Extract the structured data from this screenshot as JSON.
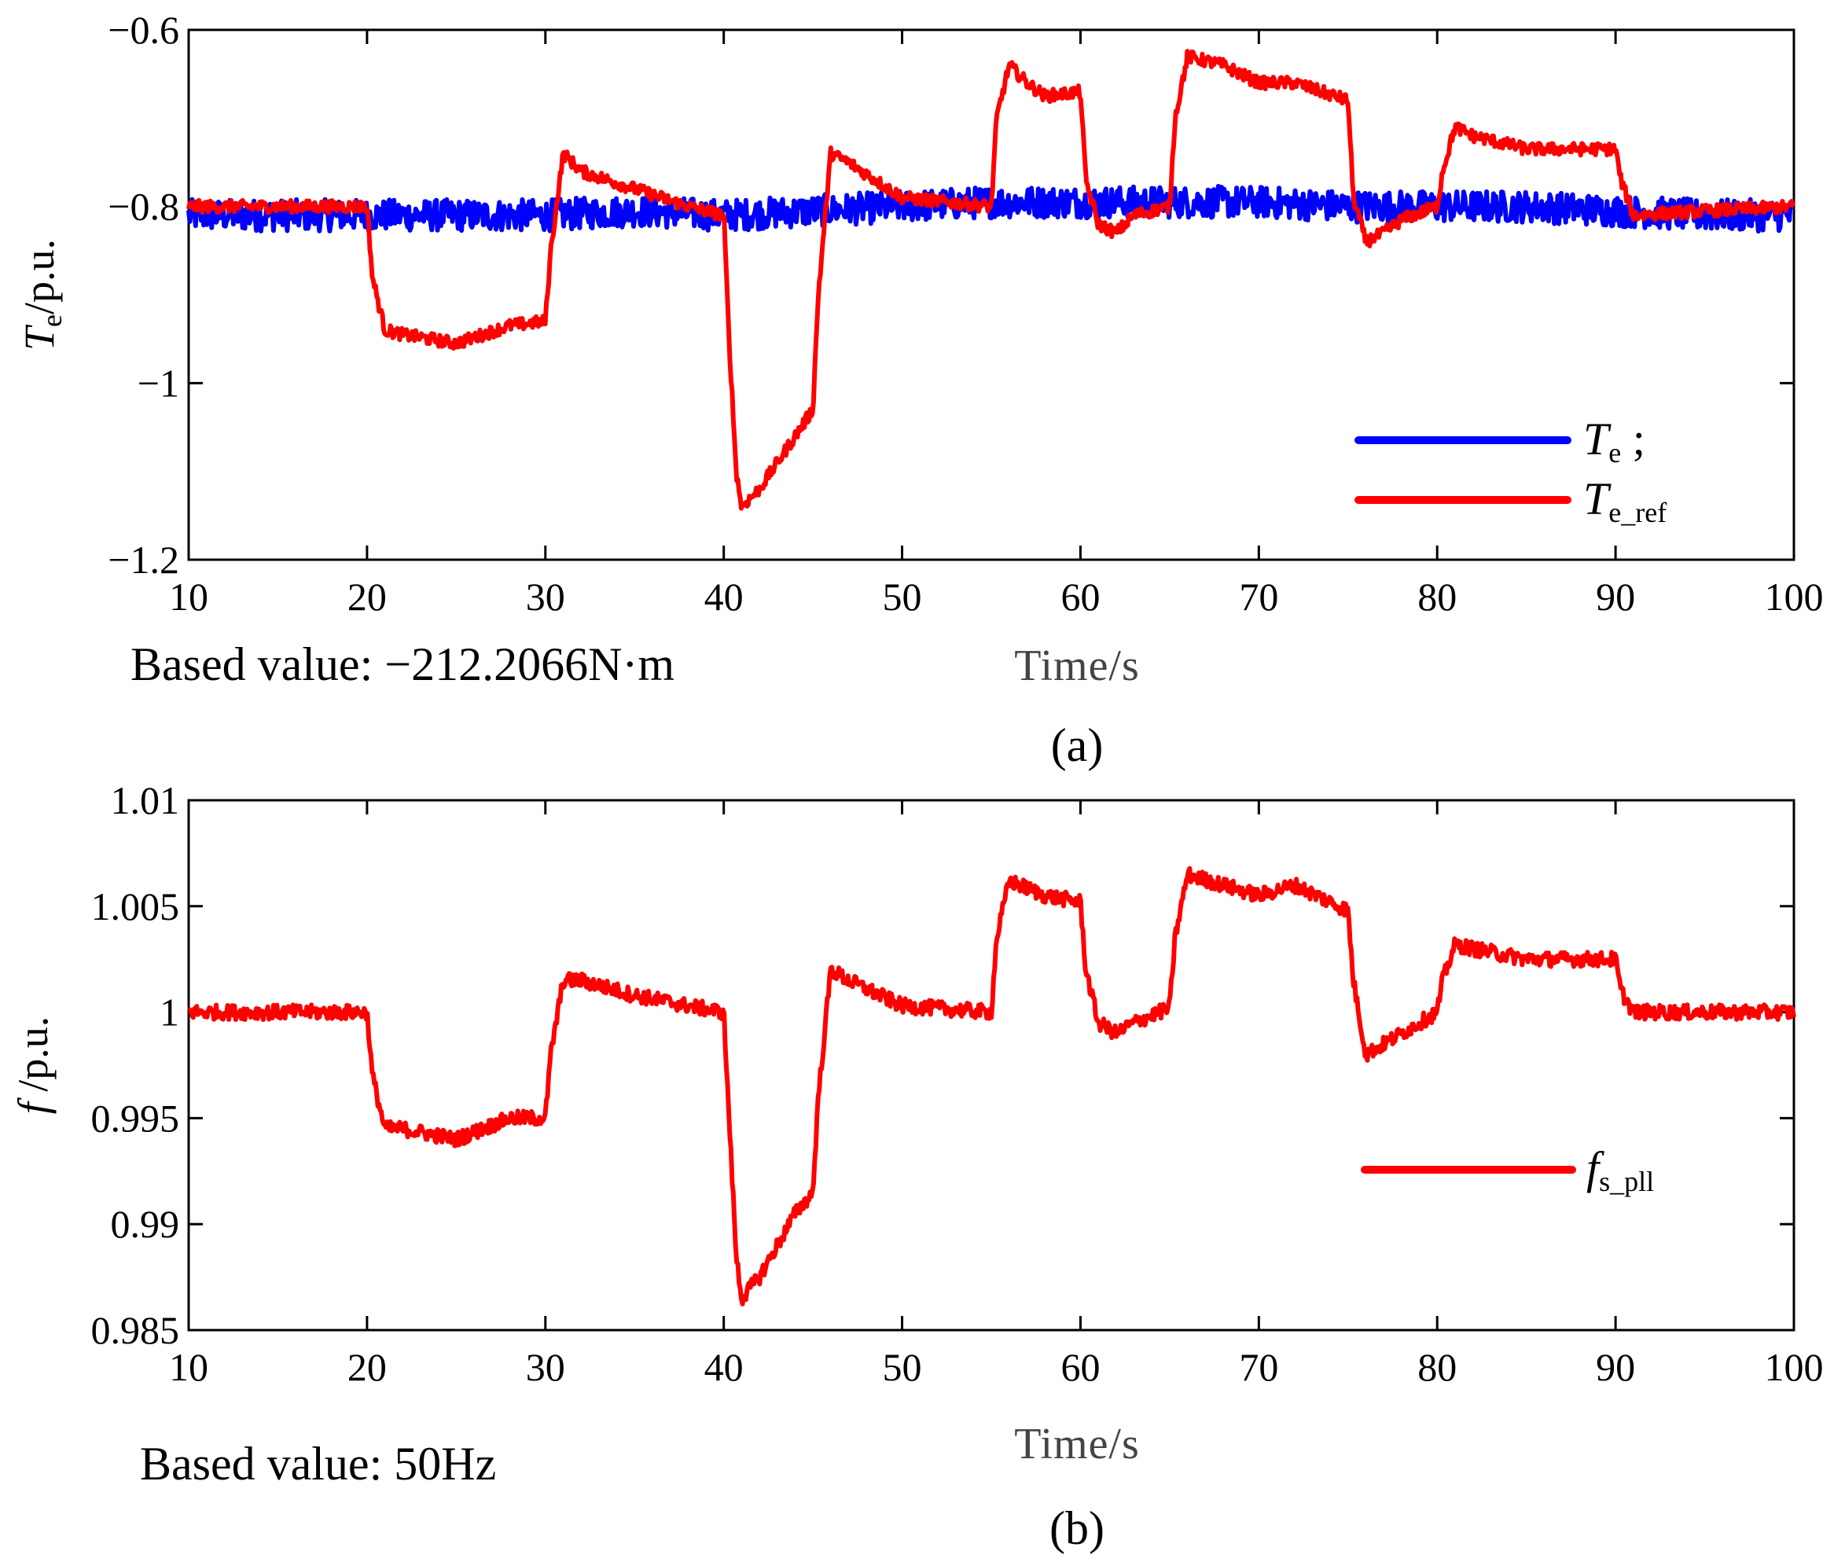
{
  "chart_data": [
    {
      "type": "line",
      "panel": "(a)",
      "title": "",
      "xlabel": "Time/s",
      "ylabel_main": "T",
      "ylabel_sub": "e",
      "ylabel_unit": "/p.u.",
      "xlim": [
        10,
        100
      ],
      "ylim": [
        -1.2,
        -0.6
      ],
      "xticks": [
        10,
        20,
        30,
        40,
        50,
        60,
        70,
        80,
        90,
        100
      ],
      "xtick_labels": [
        "10",
        "20",
        "30",
        "40",
        "50",
        "60",
        "70",
        "80",
        "90",
        "100"
      ],
      "yticks": [
        -1.2,
        -1,
        -0.8,
        -0.6
      ],
      "ytick_labels": [
        "−1.2",
        "−1",
        "−0.8",
        "−0.6"
      ],
      "note": "Based value: −212.2066N·m",
      "caption": "(a)",
      "legend_position": "lower-right",
      "series": [
        {
          "name": "Te",
          "legend_main": "T",
          "legend_sub": "e",
          "legend_suffix": " ;",
          "color": "#0000ff",
          "noise": 0.018,
          "x": [
            10,
            20,
            30,
            35,
            40,
            45,
            50,
            55,
            60,
            65,
            70,
            75,
            80,
            85,
            90,
            95,
            100
          ],
          "y": [
            -0.81,
            -0.81,
            -0.81,
            -0.805,
            -0.81,
            -0.805,
            -0.8,
            -0.795,
            -0.795,
            -0.795,
            -0.795,
            -0.8,
            -0.8,
            -0.8,
            -0.805,
            -0.81,
            -0.81
          ]
        },
        {
          "name": "Te_ref",
          "legend_main": "T",
          "legend_sub": "e_ref",
          "legend_suffix": "",
          "color": "#ff0000",
          "noise": 0.007,
          "x": [
            10,
            20,
            20.3,
            21,
            22,
            25,
            28,
            30,
            30.3,
            31,
            32,
            35,
            38,
            40,
            40.3,
            40.7,
            41,
            42,
            44,
            45,
            45.3,
            46,
            47,
            50,
            55,
            55.3,
            56,
            57,
            58,
            60,
            60.3,
            61,
            62,
            63,
            65,
            65.3,
            66,
            68,
            70,
            72,
            75,
            75.3,
            76,
            77,
            78,
            80,
            80.3,
            81,
            82,
            85,
            88,
            90,
            90.3,
            91,
            95,
            100
          ],
          "y": [
            -0.8,
            -0.8,
            -0.88,
            -0.94,
            -0.945,
            -0.955,
            -0.935,
            -0.93,
            -0.85,
            -0.74,
            -0.76,
            -0.78,
            -0.8,
            -0.81,
            -0.95,
            -1.1,
            -1.14,
            -1.12,
            -1.06,
            -1.03,
            -0.9,
            -0.74,
            -0.75,
            -0.79,
            -0.8,
            -0.7,
            -0.64,
            -0.66,
            -0.675,
            -0.67,
            -0.77,
            -0.82,
            -0.83,
            -0.81,
            -0.8,
            -0.7,
            -0.63,
            -0.64,
            -0.66,
            -0.66,
            -0.68,
            -0.79,
            -0.84,
            -0.83,
            -0.815,
            -0.8,
            -0.76,
            -0.71,
            -0.72,
            -0.735,
            -0.735,
            -0.735,
            -0.77,
            -0.81,
            -0.805,
            -0.8
          ]
        }
      ]
    },
    {
      "type": "line",
      "panel": "(b)",
      "title": "",
      "xlabel": "Time/s",
      "ylabel_main": "f",
      "ylabel_sub": "",
      "ylabel_unit": " /p.u.",
      "xlim": [
        10,
        100
      ],
      "ylim": [
        0.985,
        1.01
      ],
      "xticks": [
        10,
        20,
        30,
        40,
        50,
        60,
        70,
        80,
        90,
        100
      ],
      "xtick_labels": [
        "10",
        "20",
        "30",
        "40",
        "50",
        "60",
        "70",
        "80",
        "90",
        "100"
      ],
      "yticks": [
        0.985,
        0.99,
        0.995,
        1,
        1.005,
        1.01
      ],
      "ytick_labels": [
        "0.985",
        "0.99",
        "0.995",
        "1",
        "1.005",
        "1.01"
      ],
      "note": "Based value: 50Hz",
      "caption": "(b)",
      "legend_position": "right",
      "series": [
        {
          "name": "fs_pll",
          "legend_main": "f",
          "legend_sub": "s_pll",
          "legend_suffix": "",
          "color": "#ff0000",
          "noise": 0.00035,
          "x": [
            10,
            20,
            20.3,
            21,
            22,
            25,
            28,
            30,
            30.3,
            31,
            32,
            35,
            38,
            40,
            40.3,
            40.7,
            41,
            42,
            44,
            45,
            45.3,
            46,
            47,
            50,
            55,
            55.3,
            56,
            58,
            60,
            60.3,
            61,
            62,
            63,
            65,
            65.3,
            66,
            68,
            70,
            72,
            75,
            75.3,
            76,
            77,
            78,
            80,
            80.3,
            81,
            82,
            85,
            88,
            90,
            90.3,
            91,
            95,
            100
          ],
          "y": [
            1.0,
            1.0,
            0.997,
            0.9945,
            0.9945,
            0.994,
            0.995,
            0.995,
            0.998,
            1.0015,
            1.0015,
            1.0008,
            1.0003,
            1.0,
            0.995,
            0.9885,
            0.9865,
            0.9875,
            0.9905,
            0.9915,
            0.996,
            1.002,
            1.0015,
            1.0003,
            1.0,
            1.0035,
            1.0062,
            1.0055,
            1.0052,
            1.002,
            0.9995,
            0.999,
            0.9995,
            1.0002,
            1.0035,
            1.0065,
            1.006,
            1.0055,
            1.006,
            1.0048,
            1.0015,
            0.998,
            0.9985,
            0.999,
            1.0,
            1.0015,
            1.0032,
            1.003,
            1.0025,
            1.0025,
            1.0025,
            1.001,
            1.0,
            1.0,
            1.0
          ]
        }
      ]
    }
  ]
}
